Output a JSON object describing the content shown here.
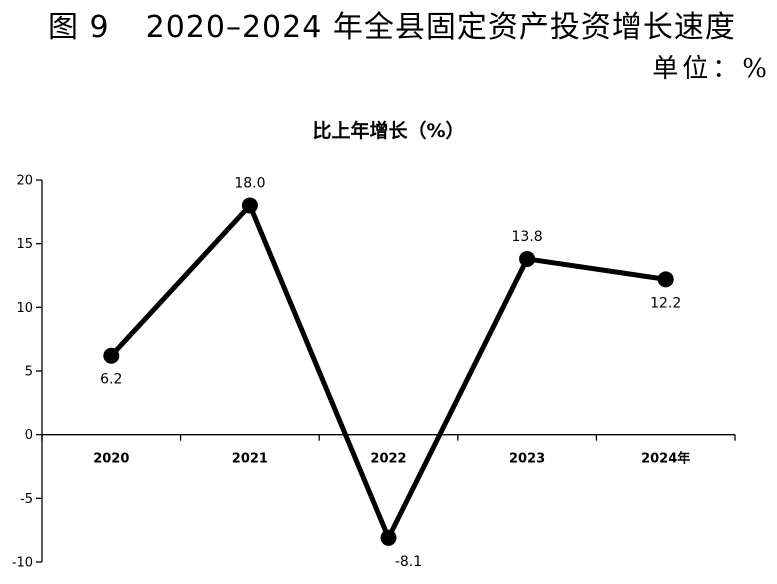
{
  "figure": {
    "label": "图 9",
    "title": "2020–2024 年全县固定资产投资增长速度",
    "unit": "单位：%"
  },
  "chart_data": {
    "type": "line",
    "title": "比上年增长（%）",
    "categories": [
      "2020",
      "2021",
      "2022",
      "2023",
      "2024年"
    ],
    "series": [
      {
        "values": [
          6.2,
          18.0,
          -8.1,
          13.8,
          12.2
        ]
      }
    ],
    "data_labels": [
      "6.2",
      "18.0",
      "-8.1",
      "13.8",
      "12.2"
    ],
    "label_positions": [
      "below",
      "above",
      "below",
      "above",
      "below"
    ],
    "y_ticks": [
      -10,
      -5,
      0,
      5,
      10,
      15,
      20
    ],
    "ylim": [
      -10,
      20
    ],
    "grid": false,
    "legend": "none",
    "line_color": "#000000",
    "marker_color": "#000000"
  }
}
